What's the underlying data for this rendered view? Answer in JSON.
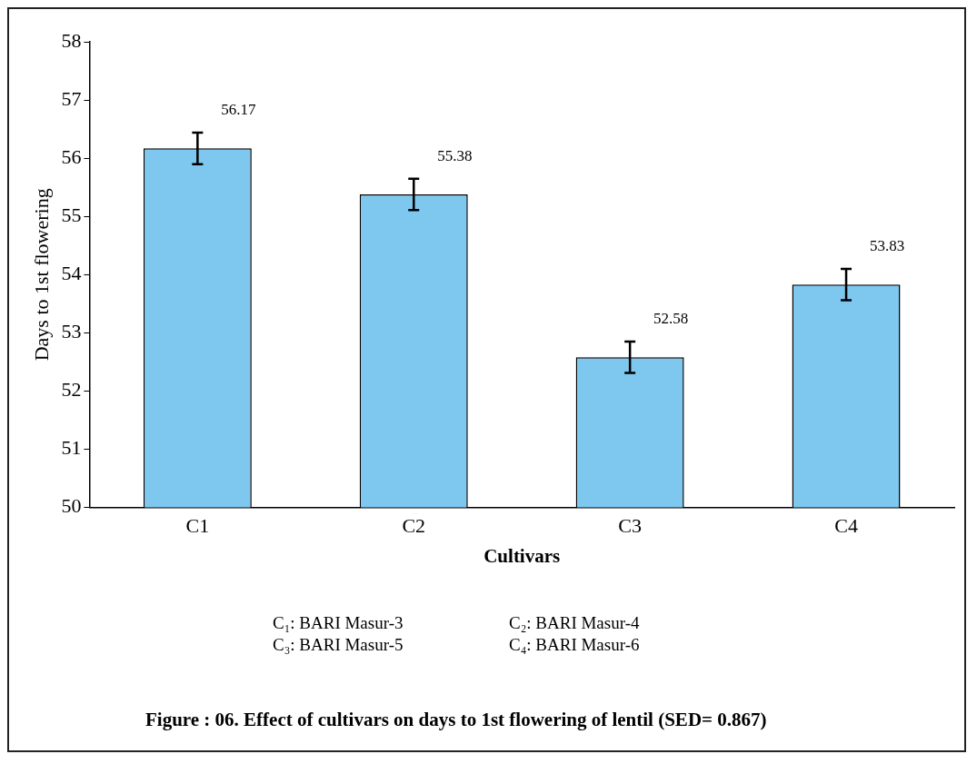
{
  "chart_data": {
    "type": "bar",
    "xlabel": "Cultivars",
    "ylabel": "Days to 1st flowering",
    "categories": [
      "C1",
      "C2",
      "C3",
      "C4"
    ],
    "values": [
      56.17,
      55.38,
      52.58,
      53.83
    ],
    "errors": [
      0.27,
      0.27,
      0.27,
      0.27
    ],
    "color": "#7ec8f0",
    "ylim": [
      50,
      58
    ],
    "yticks": [
      50,
      51,
      52,
      53,
      54,
      55,
      56,
      57,
      58
    ],
    "data_labels": true,
    "grid": false,
    "legend": false,
    "annotations": [
      "C₁: BARI Masur-3",
      "C₂: BARI Masur-4",
      "C₃: BARI Masur-5",
      "C₄: BARI Masur-6",
      "Figure : 06. Effect of cultivars on days to 1st flowering of lentil (SED= 0.867)"
    ]
  }
}
